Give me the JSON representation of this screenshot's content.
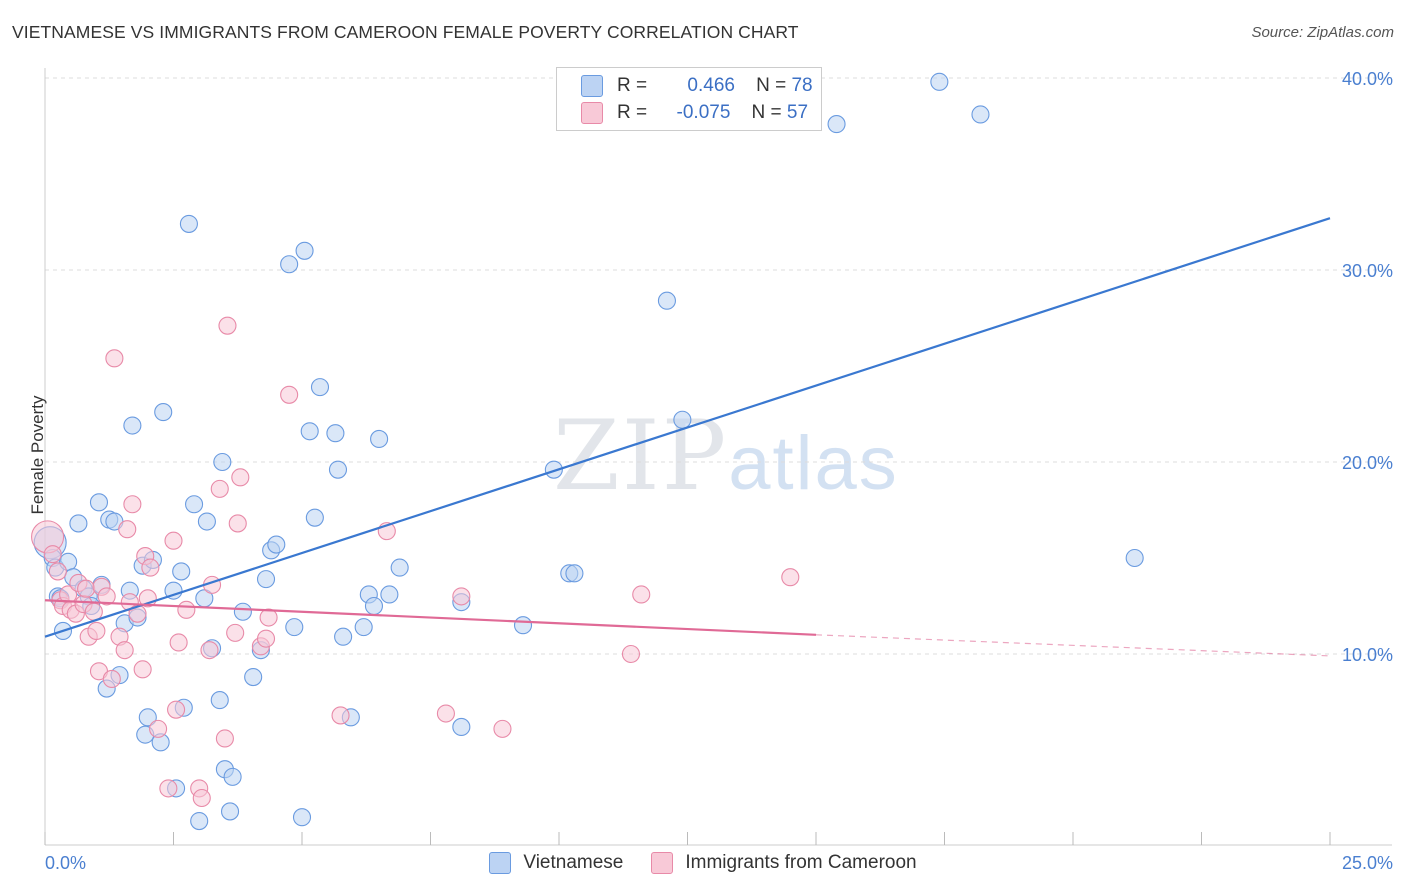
{
  "header": {
    "title": "VIETNAMESE VS IMMIGRANTS FROM CAMEROON FEMALE POVERTY CORRELATION CHART",
    "source": "Source: ZipAtlas.com"
  },
  "watermark": {
    "zip": "ZIP",
    "atlas": "atlas"
  },
  "legend": {
    "r_label": "R =",
    "n_label": "N =",
    "rows": [
      {
        "r": "0.466",
        "n": "78",
        "color": "#6a9be0",
        "fill": "#bcd3f3"
      },
      {
        "r": "-0.075",
        "n": "57",
        "color": "#e88aa8",
        "fill": "#f8c9d7"
      }
    ]
  },
  "bottom_legend": {
    "items": [
      "Vietnamese",
      "Immigrants from Cameroon"
    ]
  },
  "chart_data": {
    "type": "scatter",
    "title": "VIETNAMESE VS IMMIGRANTS FROM CAMEROON FEMALE POVERTY CORRELATION CHART",
    "xlabel": "",
    "ylabel": "Female Poverty",
    "xlim": [
      0,
      25
    ],
    "ylim": [
      0,
      40
    ],
    "x_tick_labels": [
      "0.0%",
      "25.0%"
    ],
    "y_ticks": [
      10,
      20,
      30,
      40
    ],
    "y_tick_labels": [
      "10.0%",
      "20.0%",
      "30.0%",
      "40.0%"
    ],
    "grid": true,
    "colors": {
      "blue": "#3a78d0",
      "pink": "#e06a96",
      "tick": "#4a7fd0"
    },
    "series": [
      {
        "name": "Vietnamese",
        "color": "#6a9be0",
        "fill": "#bcd3f3",
        "trend": {
          "x": [
            0,
            25
          ],
          "y": [
            10.9,
            32.7
          ],
          "style": "solid"
        },
        "points": [
          [
            0.1,
            15.8
          ],
          [
            0.15,
            15.0
          ],
          [
            0.2,
            14.5
          ],
          [
            0.25,
            13.0
          ],
          [
            0.3,
            12.9
          ],
          [
            0.35,
            11.2
          ],
          [
            0.45,
            14.8
          ],
          [
            0.55,
            14.0
          ],
          [
            0.65,
            16.8
          ],
          [
            0.75,
            13.4
          ],
          [
            0.85,
            13.0
          ],
          [
            0.9,
            12.5
          ],
          [
            1.05,
            17.9
          ],
          [
            1.1,
            13.6
          ],
          [
            1.2,
            8.2
          ],
          [
            1.25,
            17.0
          ],
          [
            1.35,
            16.9
          ],
          [
            1.45,
            8.9
          ],
          [
            1.55,
            11.6
          ],
          [
            1.65,
            13.3
          ],
          [
            1.7,
            21.9
          ],
          [
            1.8,
            11.9
          ],
          [
            1.9,
            14.6
          ],
          [
            1.95,
            5.8
          ],
          [
            2.0,
            6.7
          ],
          [
            2.1,
            14.9
          ],
          [
            2.25,
            5.4
          ],
          [
            2.3,
            22.6
          ],
          [
            2.5,
            13.3
          ],
          [
            2.55,
            3.0
          ],
          [
            2.65,
            14.3
          ],
          [
            2.7,
            7.2
          ],
          [
            2.8,
            32.4
          ],
          [
            2.9,
            17.8
          ],
          [
            3.0,
            1.3
          ],
          [
            3.1,
            12.9
          ],
          [
            3.15,
            16.9
          ],
          [
            3.25,
            10.3
          ],
          [
            3.4,
            7.6
          ],
          [
            3.45,
            20.0
          ],
          [
            3.5,
            4.0
          ],
          [
            3.6,
            1.8
          ],
          [
            3.65,
            3.6
          ],
          [
            3.85,
            12.2
          ],
          [
            4.05,
            8.8
          ],
          [
            4.2,
            10.2
          ],
          [
            4.3,
            13.9
          ],
          [
            4.4,
            15.4
          ],
          [
            4.5,
            15.7
          ],
          [
            4.75,
            30.3
          ],
          [
            4.85,
            11.4
          ],
          [
            5.0,
            1.5
          ],
          [
            5.05,
            31.0
          ],
          [
            5.15,
            21.6
          ],
          [
            5.25,
            17.1
          ],
          [
            5.35,
            23.9
          ],
          [
            5.65,
            21.5
          ],
          [
            5.7,
            19.6
          ],
          [
            5.8,
            10.9
          ],
          [
            5.95,
            6.7
          ],
          [
            6.2,
            11.4
          ],
          [
            6.3,
            13.1
          ],
          [
            6.4,
            12.5
          ],
          [
            6.5,
            21.2
          ],
          [
            6.7,
            13.1
          ],
          [
            6.9,
            14.5
          ],
          [
            8.1,
            12.7
          ],
          [
            8.1,
            6.2
          ],
          [
            9.3,
            11.5
          ],
          [
            9.9,
            19.6
          ],
          [
            10.2,
            14.2
          ],
          [
            10.3,
            14.2
          ],
          [
            12.1,
            28.4
          ],
          [
            12.4,
            22.2
          ],
          [
            15.4,
            37.6
          ],
          [
            17.4,
            39.8
          ],
          [
            18.2,
            38.1
          ],
          [
            21.2,
            15.0
          ]
        ]
      },
      {
        "name": "Immigrants from Cameroon",
        "color": "#e88aa8",
        "fill": "#f8c9d7",
        "trend": {
          "x": [
            0,
            15
          ],
          "y": [
            12.8,
            11.0
          ],
          "style": "solid",
          "dashed_to": [
            25,
            9.9
          ]
        },
        "points": [
          [
            0.05,
            16.1
          ],
          [
            0.15,
            15.2
          ],
          [
            0.25,
            14.3
          ],
          [
            0.3,
            12.8
          ],
          [
            0.35,
            12.5
          ],
          [
            0.45,
            13.1
          ],
          [
            0.5,
            12.3
          ],
          [
            0.6,
            12.1
          ],
          [
            0.65,
            13.7
          ],
          [
            0.75,
            12.6
          ],
          [
            0.8,
            13.4
          ],
          [
            0.85,
            10.9
          ],
          [
            0.95,
            12.2
          ],
          [
            1.0,
            11.2
          ],
          [
            1.05,
            9.1
          ],
          [
            1.1,
            13.5
          ],
          [
            1.2,
            13.0
          ],
          [
            1.3,
            8.7
          ],
          [
            1.35,
            25.4
          ],
          [
            1.45,
            10.9
          ],
          [
            1.55,
            10.2
          ],
          [
            1.6,
            16.5
          ],
          [
            1.65,
            12.7
          ],
          [
            1.7,
            17.8
          ],
          [
            1.8,
            12.1
          ],
          [
            1.9,
            9.2
          ],
          [
            1.95,
            15.1
          ],
          [
            2.0,
            12.9
          ],
          [
            2.05,
            14.5
          ],
          [
            2.2,
            6.1
          ],
          [
            2.4,
            3.0
          ],
          [
            2.5,
            15.9
          ],
          [
            2.55,
            7.1
          ],
          [
            2.6,
            10.6
          ],
          [
            2.75,
            12.3
          ],
          [
            3.0,
            3.0
          ],
          [
            3.05,
            2.5
          ],
          [
            3.2,
            10.2
          ],
          [
            3.25,
            13.6
          ],
          [
            3.4,
            18.6
          ],
          [
            3.5,
            5.6
          ],
          [
            3.55,
            27.1
          ],
          [
            3.7,
            11.1
          ],
          [
            3.75,
            16.8
          ],
          [
            3.8,
            19.2
          ],
          [
            4.2,
            10.4
          ],
          [
            4.3,
            10.8
          ],
          [
            4.35,
            11.9
          ],
          [
            4.75,
            23.5
          ],
          [
            5.75,
            6.8
          ],
          [
            6.65,
            16.4
          ],
          [
            7.8,
            6.9
          ],
          [
            8.1,
            13.0
          ],
          [
            8.9,
            6.1
          ],
          [
            11.4,
            10.0
          ],
          [
            11.6,
            13.1
          ],
          [
            14.5,
            14.0
          ]
        ]
      }
    ]
  }
}
